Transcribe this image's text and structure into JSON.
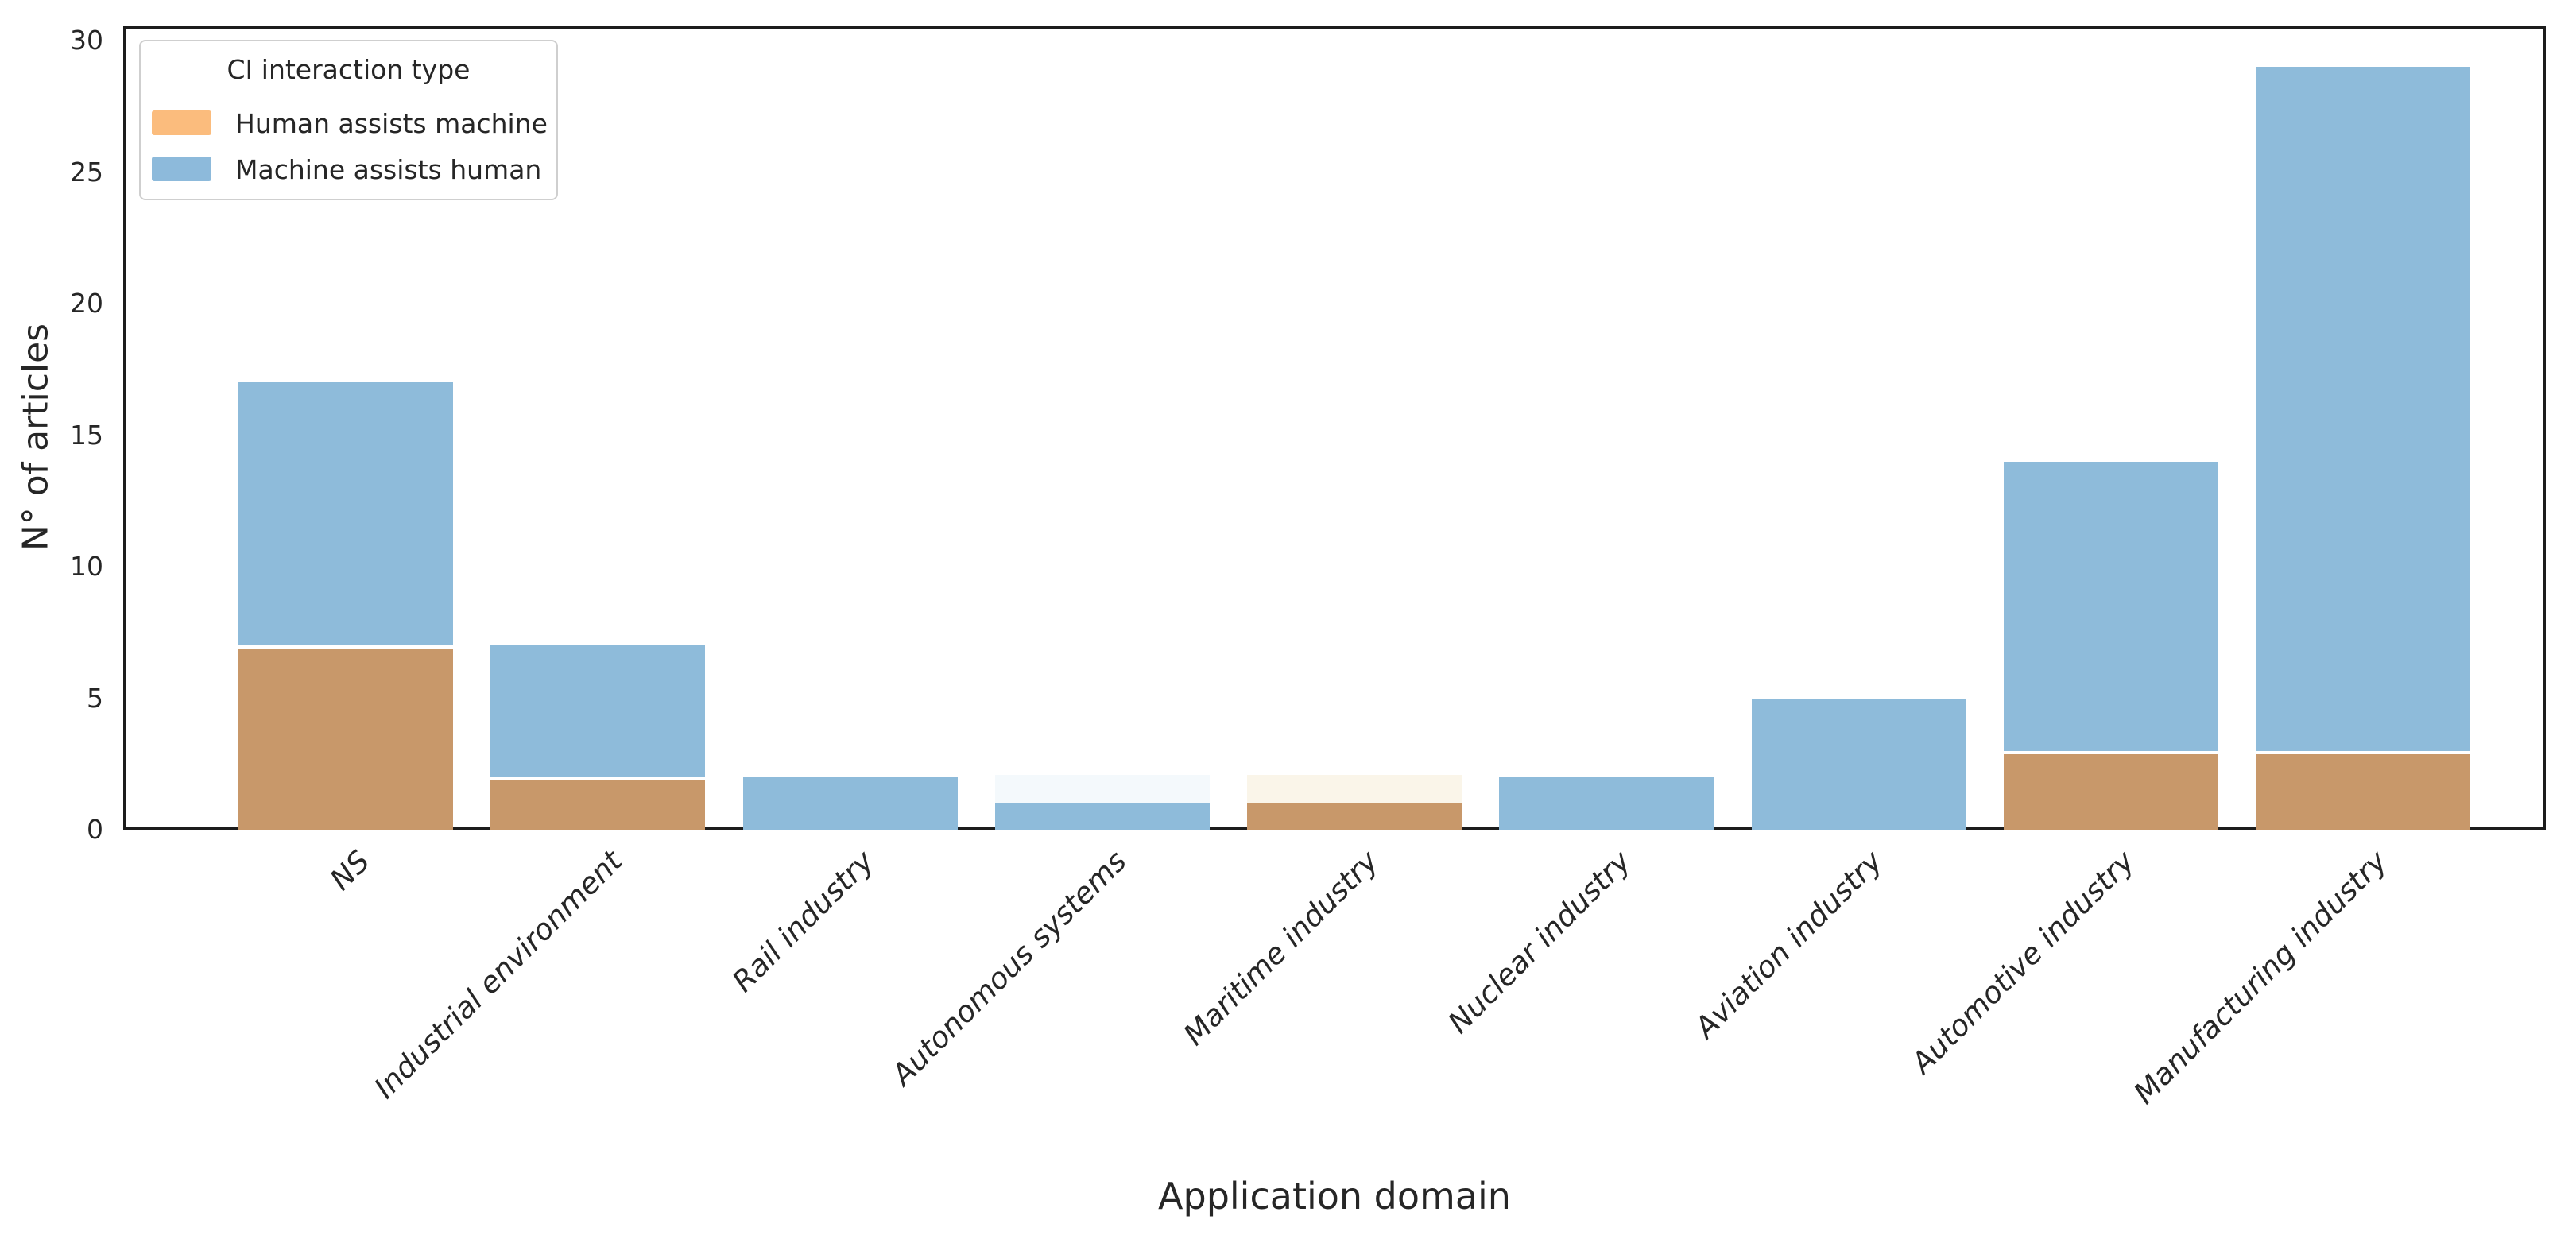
{
  "figure": {
    "background": "#ffffff",
    "axes_border_color": "#1c1c1c",
    "text_color": "#262626"
  },
  "chart_data": {
    "type": "bar",
    "stacked": true,
    "title": "",
    "xlabel": "Application domain",
    "ylabel": "N° of articles",
    "categories": [
      "NS",
      "Industrial environment",
      "Rail industry",
      "Autonomous systems",
      "Maritime industry",
      "Nuclear industry",
      "Aviation industry",
      "Automotive industry",
      "Manufacturing industry"
    ],
    "series": [
      {
        "name": "Human assists machine",
        "legend_color": "#fbbc7d",
        "bar_color": "#c8986a",
        "values": [
          7,
          2,
          0,
          0,
          1,
          0,
          0,
          3,
          3
        ]
      },
      {
        "name": "Machine assists human",
        "legend_color": "#8dbadb",
        "bar_color": "#8ebbda",
        "values": [
          10,
          5,
          2,
          1,
          0,
          2,
          5,
          11,
          26
        ]
      }
    ],
    "totals": [
      17,
      7,
      2,
      1,
      1,
      2,
      5,
      14,
      29
    ],
    "yticks": [
      0,
      5,
      10,
      15,
      20,
      25,
      30
    ],
    "ylim": [
      0,
      30.6
    ],
    "grid": "off",
    "legend": {
      "title": "CI interaction type",
      "position": "upper left"
    },
    "ghost_segments": [
      {
        "category_index": 3,
        "from": 1,
        "to": 2.1,
        "color": "#eef6fb"
      },
      {
        "category_index": 4,
        "from": 1,
        "to": 2.1,
        "color": "#f8f0dd"
      }
    ]
  }
}
